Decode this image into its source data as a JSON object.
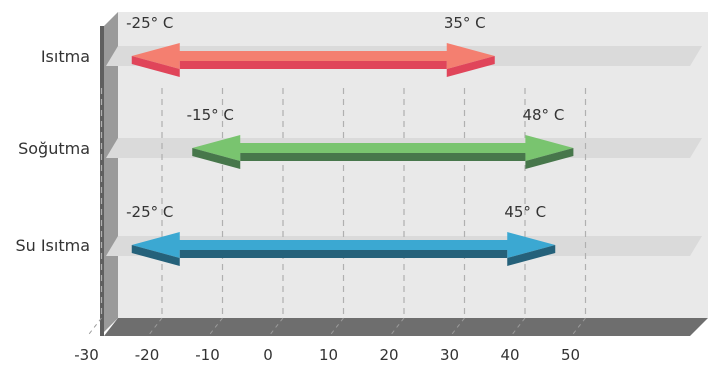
{
  "chart_data": {
    "type": "range-bar",
    "title": "",
    "xlabel": "",
    "ylabel": "",
    "xlim": [
      -40,
      60
    ],
    "x_ticks": [
      -30,
      -20,
      -10,
      0,
      10,
      20,
      30,
      40,
      50
    ],
    "grid": true,
    "categories": [
      "Isıtma",
      "Soğutma",
      "Su Isıtma"
    ],
    "series": [
      {
        "category": "Isıtma",
        "min": -25,
        "max": 35,
        "min_label": "-25° C",
        "max_label": "35° C",
        "color_top": "#f47f70",
        "color_front": "#e0455a"
      },
      {
        "category": "Soğutma",
        "min": -15,
        "max": 48,
        "min_label": "-15° C",
        "max_label": "48° C",
        "color_top": "#79c46f",
        "color_front": "#47774b"
      },
      {
        "category": "Su Isıtma",
        "min": -25,
        "max": 45,
        "min_label": "-25° C",
        "max_label": "45° C",
        "color_top": "#3ba8d2",
        "color_front": "#25617a"
      }
    ]
  },
  "colors": {
    "wall": "#e9e9e9",
    "floor": "#6e6e6e",
    "left_wall": "#9a9a9a",
    "stripe": "#dadada",
    "grid": "#b0b0b0"
  }
}
